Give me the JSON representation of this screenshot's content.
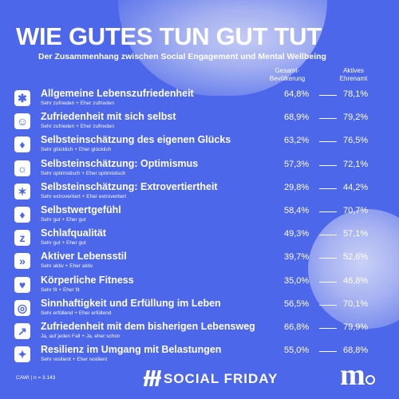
{
  "title": "WIE GUTES TUN GUT TUT",
  "subtitle": "Der Zusammenhang zwischen Social Engagement und Mental Wellbeing",
  "columns": [
    "Gesamt-\nBevölkerung",
    "Aktives\nEhrenamt"
  ],
  "footnote": "CAWI | n = 3.143",
  "brand": "SOCIAL FRIDAY",
  "logo": "m",
  "colors": {
    "background": "#4d67ea",
    "text": "#ffffff"
  },
  "chart_data": {
    "type": "table",
    "title": "WIE GUTES TUN GUT TUT",
    "series": [
      {
        "name": "Gesamt-Bevölkerung",
        "values": [
          "64,8%",
          "68,9%",
          "63,2%",
          "57,3%",
          "29,8%",
          "58,4%",
          "49,3%",
          "39,7%",
          "35,0%",
          "56,5%",
          "66,8%",
          "55,0%"
        ]
      },
      {
        "name": "Aktives Ehrenamt",
        "values": [
          "78,1%",
          "79,2%",
          "76,5%",
          "72,1%",
          "44,2%",
          "70,7%",
          "57,1%",
          "52,6%",
          "46,8%",
          "70,1%",
          "79,9%",
          "68,8%"
        ]
      }
    ],
    "rows": [
      {
        "icon": "star-person-icon",
        "label": "Allgemeine Lebenszufriedenheit",
        "sub": "Sehr zufrieden + Eher zufrieden"
      },
      {
        "icon": "self-icon",
        "label": "Zufriedenheit mit sich selbst",
        "sub": "Sehr zufrieden + Eher zufrieden"
      },
      {
        "icon": "thumbs-up-icon",
        "label": "Selbsteinschätzung des eigenen Glücks",
        "sub": "Sehr glücklich + Eher glücklich"
      },
      {
        "icon": "sun-icon",
        "label": "Selbsteinschätzung: Optimismus",
        "sub": "Sehr optimistisch + Eher optimistisch"
      },
      {
        "icon": "burst-icon",
        "label": "Selbsteinschätzung: Extrovertiertheit",
        "sub": "Sehr extrovertiert + Eher extrovertiert"
      },
      {
        "icon": "thumbs-up-icon",
        "label": "Selbstwertgefühl",
        "sub": "Sehr gut + Eher gut"
      },
      {
        "icon": "sleep-icon",
        "label": "Schlafqualität",
        "sub": "Sehr gut + Eher gut"
      },
      {
        "icon": "activity-icon",
        "label": "Aktiver Lebensstil",
        "sub": "Sehr aktiv + Eher aktiv"
      },
      {
        "icon": "heart-pulse-icon",
        "label": "Körperliche Fitness",
        "sub": "Sehr fit + Eher fit"
      },
      {
        "icon": "meaning-icon",
        "label": "Sinnhaftigkeit und Erfüllung im Leben",
        "sub": "Sehr erfüllend + Eher erfüllend"
      },
      {
        "icon": "path-icon",
        "label": "Zufriedenheit mit dem bisherigen Lebensweg",
        "sub": "Ja, auf jeden Fall + Ja, eher schon"
      },
      {
        "icon": "resilience-icon",
        "label": "Resilienz im Umgang mit Belastungen",
        "sub": "Sehr resilient + Eher resilient"
      }
    ]
  }
}
